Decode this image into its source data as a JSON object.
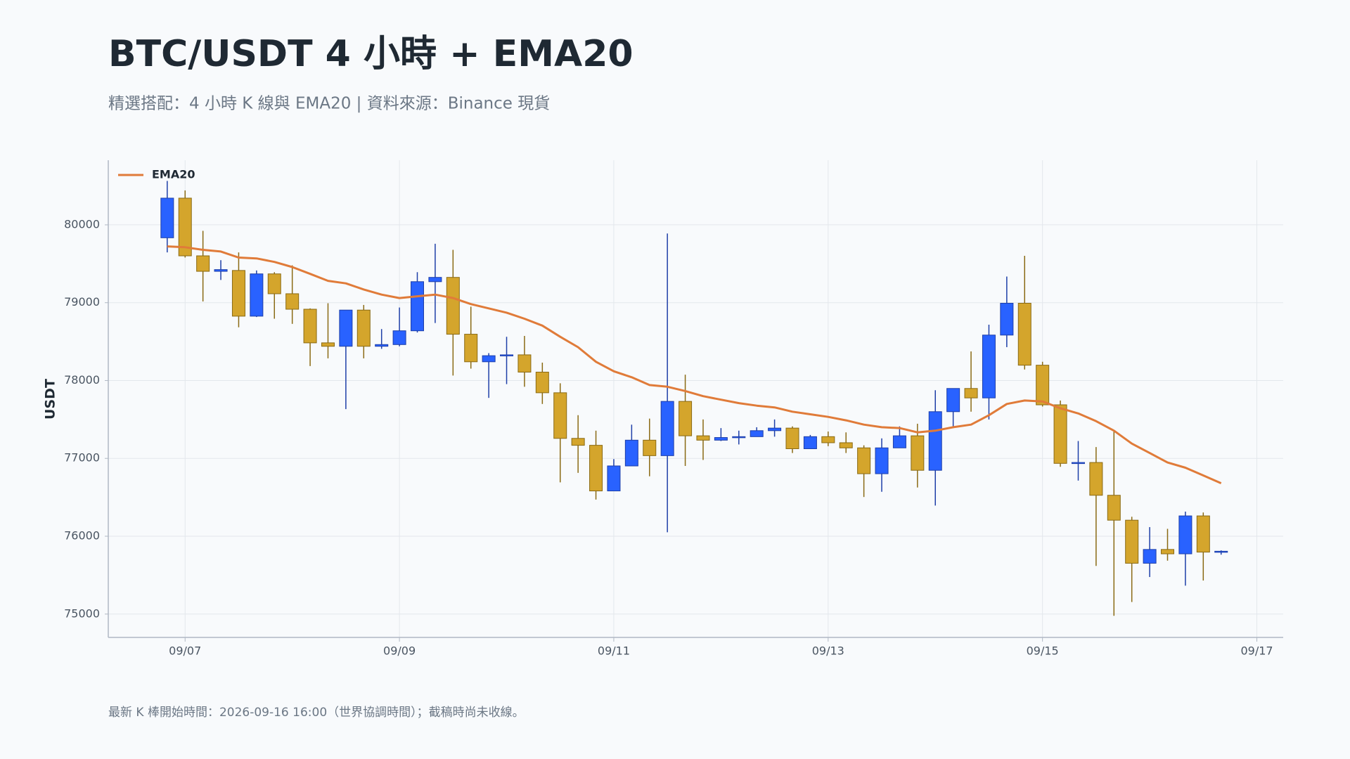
{
  "chart_data": {
    "type": "candlestick",
    "title": "BTC/USDT 4 小時 + EMA20",
    "subtitle": "精選搭配：4 小時 K 線與 EMA20 | 資料來源：Binance 現貨",
    "y_label": "USDT",
    "footnote": "最新 K 棒開始時間：2026-09-16 16:00（世界協調時間）；截稿時尚未收線。",
    "x": [
      "09/06 20:00",
      "09/07 00:00",
      "09/07 04:00",
      "09/07 08:00",
      "09/07 12:00",
      "09/07 16:00",
      "09/07 20:00",
      "09/08 00:00",
      "09/08 04:00",
      "09/08 08:00",
      "09/08 12:00",
      "09/08 16:00",
      "09/08 20:00",
      "09/09 00:00",
      "09/09 04:00",
      "09/09 08:00",
      "09/09 12:00",
      "09/09 16:00",
      "09/09 20:00",
      "09/10 00:00",
      "09/10 04:00",
      "09/10 08:00",
      "09/10 12:00",
      "09/10 16:00",
      "09/10 20:00",
      "09/11 00:00",
      "09/11 04:00",
      "09/11 08:00",
      "09/11 12:00",
      "09/11 16:00",
      "09/11 20:00",
      "09/12 00:00",
      "09/12 04:00",
      "09/12 08:00",
      "09/12 12:00",
      "09/12 16:00",
      "09/12 20:00",
      "09/13 00:00",
      "09/13 04:00",
      "09/13 08:00",
      "09/13 12:00",
      "09/13 16:00",
      "09/13 20:00",
      "09/14 00:00",
      "09/14 04:00",
      "09/14 08:00",
      "09/14 12:00",
      "09/14 16:00",
      "09/14 20:00",
      "09/15 00:00",
      "09/15 04:00",
      "09/15 08:00",
      "09/15 12:00",
      "09/15 16:00",
      "09/15 20:00",
      "09/16 00:00",
      "09/16 04:00",
      "09/16 08:00",
      "09/16 12:00",
      "09/16 16:00"
    ],
    "open": [
      79834,
      80343,
      79602,
      79403,
      79414,
      78827,
      79370,
      79115,
      78916,
      78484,
      78440,
      78905,
      78440,
      78462,
      78639,
      79270,
      79325,
      78595,
      78241,
      78319,
      78330,
      78108,
      77843,
      77257,
      77168,
      76582,
      76903,
      77234,
      77035,
      77732,
      77290,
      77234,
      77268,
      77279,
      77356,
      77389,
      77124,
      77279,
      77201,
      77135,
      76803,
      77135,
      77290,
      76847,
      77600,
      77898,
      77777,
      78584,
      78993,
      78197,
      77688,
      76936,
      76947,
      76526,
      76206,
      75653,
      75830,
      75774,
      76261,
      75796
    ],
    "high": [
      80564,
      80442,
      79923,
      79546,
      79646,
      79414,
      79392,
      79480,
      78927,
      78993,
      78905,
      78971,
      78661,
      78938,
      79392,
      79757,
      79679,
      78949,
      78352,
      78562,
      78573,
      78230,
      77965,
      77555,
      77356,
      76991,
      77433,
      77511,
      79889,
      78075,
      77500,
      77389,
      77356,
      77400,
      77500,
      77411,
      77301,
      77345,
      77334,
      77168,
      77257,
      77411,
      77445,
      77876,
      77898,
      78374,
      78717,
      79336,
      79602,
      78241,
      77743,
      77223,
      77146,
      77356,
      76250,
      76117,
      76095,
      76316,
      76305,
      75818
    ],
    "low": [
      79646,
      79580,
      79016,
      79292,
      78684,
      78816,
      78794,
      78728,
      78186,
      78285,
      77633,
      78285,
      78407,
      78440,
      78617,
      78739,
      78064,
      78153,
      77777,
      77954,
      77920,
      77699,
      76692,
      76814,
      76471,
      76582,
      76903,
      76770,
      76051,
      76903,
      76980,
      77223,
      77179,
      77279,
      77279,
      77069,
      77124,
      77157,
      77069,
      76504,
      76571,
      77135,
      76626,
      76394,
      77389,
      77600,
      77500,
      78429,
      78142,
      77666,
      76892,
      76715,
      75619,
      74978,
      75155,
      75476,
      75686,
      75365,
      75431,
      75763
    ],
    "close": [
      80343,
      79602,
      79403,
      79425,
      78827,
      79370,
      79115,
      78916,
      78484,
      78440,
      78905,
      78440,
      78462,
      78639,
      79270,
      79325,
      78595,
      78241,
      78319,
      78330,
      78108,
      77843,
      77257,
      77168,
      76582,
      76903,
      77234,
      77035,
      77732,
      77290,
      77234,
      77268,
      77279,
      77356,
      77389,
      77124,
      77279,
      77201,
      77135,
      76803,
      77135,
      77290,
      76847,
      77600,
      77898,
      77777,
      78584,
      78993,
      78197,
      77688,
      76936,
      76947,
      76526,
      76206,
      75653,
      75830,
      75774,
      76261,
      75796,
      75807
    ],
    "up_color": "#2962ff",
    "down_color": "#d4a52c",
    "lines": [
      {
        "name": "EMA20",
        "color": "#e07b39",
        "values": [
          79723,
          79712,
          79679,
          79657,
          79580,
          79569,
          79524,
          79458,
          79370,
          79281,
          79248,
          79170,
          79104,
          79060,
          79082,
          79104,
          79060,
          78982,
          78927,
          78872,
          78794,
          78706,
          78562,
          78429,
          78241,
          78119,
          78042,
          77942,
          77920,
          77865,
          77799,
          77754,
          77710,
          77677,
          77655,
          77600,
          77566,
          77533,
          77489,
          77434,
          77400,
          77389,
          77334,
          77356,
          77400,
          77434,
          77555,
          77699,
          77743,
          77732,
          77644,
          77577,
          77478,
          77356,
          77190,
          77069,
          76947,
          76880,
          76781,
          76681
        ]
      }
    ],
    "xlim": [
      "09/06 06:48",
      "09/17 05:54"
    ],
    "xticks": [
      {
        "value": "09/07 00:00",
        "label": "09/07"
      },
      {
        "value": "09/09 00:00",
        "label": "09/09"
      },
      {
        "value": "09/11 00:00",
        "label": "09/11"
      },
      {
        "value": "09/13 00:00",
        "label": "09/13"
      },
      {
        "value": "09/15 00:00",
        "label": "09/15"
      },
      {
        "value": "09/17 00:00",
        "label": "09/17"
      }
    ],
    "ylim": [
      74700,
      80830
    ],
    "yticks": [
      75000,
      76000,
      77000,
      78000,
      79000,
      80000
    ],
    "grid": true,
    "legend": "upper left"
  }
}
